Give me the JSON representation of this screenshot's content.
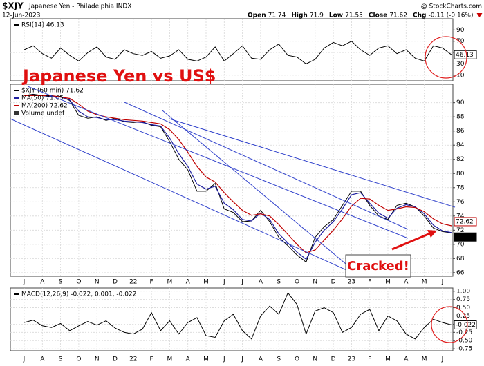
{
  "header": {
    "symbol": "$XJY",
    "name": "Japanese Yen - Philadelphia INDX",
    "date": "12-Jun-2023",
    "quote": [
      {
        "label": "Open",
        "value": 71.74
      },
      {
        "label": "High",
        "value": 71.9
      },
      {
        "label": "Low",
        "value": 71.55
      },
      {
        "label": "Close",
        "value": 71.62
      },
      {
        "label": "Chg",
        "value": "-0.11 (-0.16%)"
      }
    ],
    "credit": "@ StockCharts.com"
  },
  "chart_data": [
    {
      "type": "line",
      "annotations": [
        "Japanese Yen vs US$",
        "Cracked!"
      ],
      "volume_label": "Volume undef",
      "categories": [
        "J",
        null,
        "A",
        null,
        "S",
        null,
        "O",
        null,
        "N",
        null,
        "D",
        null,
        "22",
        null,
        "F",
        null,
        "M",
        null,
        "A",
        null,
        "M",
        null,
        "J",
        null,
        "J",
        null,
        "A",
        null,
        "S",
        null,
        "O",
        null,
        "N",
        null,
        "D",
        null,
        "23",
        null,
        "F",
        null,
        "M",
        null,
        "A",
        null,
        "M",
        null,
        "J",
        null
      ],
      "ylim": [
        65.5,
        92.6
      ],
      "yticks": [
        66,
        68,
        70,
        72,
        74,
        76,
        78,
        80,
        82,
        84,
        86,
        88,
        90
      ],
      "grid": true,
      "series": [
        {
          "name": "$XJY (60 min) 71.62",
          "color": "#000000",
          "values": [
            91,
            91.2,
            91,
            90.8,
            90.9,
            90.3,
            88.2,
            87.8,
            88,
            87.5,
            87.8,
            87.3,
            87.2,
            87.3,
            86.8,
            86.6,
            84.5,
            82,
            80.5,
            77.5,
            77.5,
            78.6,
            75,
            74.5,
            73.2,
            73.3,
            74.8,
            73.2,
            71,
            69.8,
            68.5,
            67.5,
            71,
            72.5,
            73.5,
            75.5,
            77.5,
            77.5,
            75.5,
            74,
            73.5,
            75.5,
            75.8,
            75.3,
            74,
            72.3,
            71.8,
            71.62
          ]
        },
        {
          "name": "MA(50) 71.65",
          "color": "#1f1fa0",
          "values": [
            91,
            91.1,
            91,
            90.9,
            90.8,
            90.4,
            88.8,
            88,
            87.9,
            87.6,
            87.6,
            87.4,
            87.3,
            87.2,
            86.9,
            86.7,
            85,
            82.8,
            81,
            78.5,
            77.8,
            78.2,
            75.8,
            74.9,
            73.5,
            73.3,
            74.4,
            73.5,
            71.5,
            70.2,
            68.9,
            67.9,
            70.3,
            72,
            73.2,
            75,
            77,
            77.3,
            75.8,
            74.4,
            73.7,
            75.1,
            75.6,
            75.3,
            74.3,
            72.7,
            71.9,
            71.65
          ]
        },
        {
          "name": "MA(200) 72.62",
          "color": "#c00000",
          "values": [
            91,
            91,
            91,
            91,
            90.8,
            90.6,
            89.8,
            88.8,
            88.3,
            88,
            87.8,
            87.6,
            87.5,
            87.4,
            87.2,
            87,
            86.2,
            84.8,
            83,
            81,
            79.5,
            78.8,
            77.3,
            76,
            74.8,
            74.1,
            74.3,
            74,
            72.8,
            71.4,
            70,
            68.8,
            69.2,
            70.6,
            72,
            73.6,
            75.4,
            76.5,
            76.4,
            75.5,
            74.8,
            75,
            75.3,
            75.2,
            74.6,
            73.6,
            72.9,
            72.62
          ]
        }
      ]
    },
    {
      "type": "line",
      "ylim": [
        0,
        110
      ],
      "yticks": [
        10,
        30,
        50,
        70,
        90
      ],
      "grid": true,
      "series": [
        {
          "name": "RSI(14) 46.13",
          "color": "#000000",
          "values": [
            55,
            62,
            48,
            40,
            58,
            45,
            35,
            50,
            60,
            42,
            38,
            55,
            48,
            45,
            52,
            40,
            44,
            55,
            38,
            35,
            42,
            60,
            35,
            48,
            62,
            40,
            38,
            55,
            65,
            45,
            42,
            30,
            38,
            58,
            68,
            62,
            70,
            55,
            45,
            58,
            62,
            48,
            55,
            40,
            35,
            62,
            58,
            46.13
          ]
        }
      ]
    },
    {
      "type": "line",
      "ylim": [
        -0.81,
        1.1
      ],
      "grid": true,
      "yticks": [
        {
          "value": 1,
          "label": "1.00"
        },
        {
          "value": 0.75,
          "label": "0.75"
        },
        {
          "value": 0.5,
          "label": "0.50"
        },
        {
          "value": 0.25,
          "label": "0.25"
        },
        {
          "value": 0,
          "label": "0.00"
        },
        {
          "value": -0.25,
          "label": "-0.25"
        },
        {
          "value": -0.5,
          "label": "-0.50"
        },
        {
          "value": -0.75,
          "label": "-0.75"
        }
      ],
      "series": [
        {
          "name": "MACD(12,26,9) -0.022, 0.001, -0.022",
          "color": "#000000",
          "values": [
            0.05,
            0.12,
            -0.05,
            -0.1,
            0.02,
            -0.2,
            -0.05,
            0.08,
            -0.03,
            0.1,
            -0.12,
            -0.25,
            -0.3,
            -0.15,
            0.35,
            -0.2,
            0.1,
            -0.3,
            0.05,
            0.2,
            -0.35,
            -0.4,
            0.1,
            0.3,
            -0.2,
            -0.45,
            0.25,
            0.55,
            0.3,
            0.95,
            0.6,
            -0.3,
            0.4,
            0.5,
            0.35,
            -0.25,
            -0.1,
            0.3,
            0.45,
            -0.2,
            0.25,
            0.1,
            -0.3,
            -0.45,
            -0.1,
            0.15,
            0.05,
            -0.022
          ]
        }
      ]
    }
  ]
}
